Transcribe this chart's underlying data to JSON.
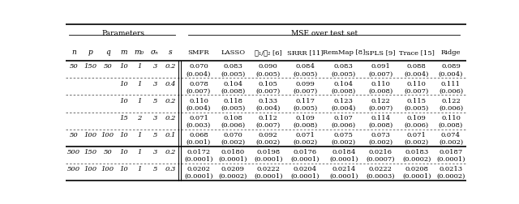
{
  "col_headers_params": [
    "n",
    "p",
    "q",
    "m",
    "m₀",
    "σₙ",
    "s"
  ],
  "col_headers_mse": [
    "SMFR",
    "LASSO",
    "ℓ₁/ℓ₂ [6]",
    "SRRR [11]",
    "RemMap [8]",
    "SPLS [9]",
    "Trace [15]",
    "Ridge"
  ],
  "params_header": "Parameters",
  "mse_header": "MSE over test set",
  "rows": [
    {
      "params": [
        "50",
        "150",
        "50",
        "10",
        "1",
        "3",
        "0.2"
      ],
      "values": [
        "0.070",
        "0.083",
        "0.090",
        "0.084",
        "0.083",
        "0.091",
        "0.088",
        "0.089"
      ],
      "std": [
        "(0.004)",
        "(0.005)",
        "(0.005)",
        "(0.005)",
        "(0.005)",
        "(0.007)",
        "(0.004)",
        "(0.004)"
      ],
      "dashed_below": true,
      "group": 0
    },
    {
      "params": [
        "",
        "",
        "",
        "10",
        "1",
        "3",
        "0.4"
      ],
      "values": [
        "0.078",
        "0.104",
        "0.105",
        "0.099",
        "0.104",
        "0.110",
        "0.110",
        "0.111"
      ],
      "std": [
        "(0.007)",
        "(0.008)",
        "(0.007)",
        "(0.007)",
        "(0.008)",
        "(0.008)",
        "(0.007)",
        "(0.006)"
      ],
      "dashed_below": true,
      "group": 0
    },
    {
      "params": [
        "",
        "",
        "",
        "10",
        "1",
        "5",
        "0.2"
      ],
      "values": [
        "0.110",
        "0.118",
        "0.133",
        "0.117",
        "0.123",
        "0.122",
        "0.115",
        "0.122"
      ],
      "std": [
        "(0.004)",
        "(0.005)",
        "(0.004)",
        "(0.005)",
        "(0.004)",
        "(0.007)",
        "(0.005)",
        "(0.006)"
      ],
      "dashed_below": true,
      "group": 0
    },
    {
      "params": [
        "",
        "",
        "",
        "15",
        "2",
        "3",
        "0.2"
      ],
      "values": [
        "0.071",
        "0.108",
        "0.112",
        "0.109",
        "0.107",
        "0.114",
        "0.109",
        "0.110"
      ],
      "std": [
        "(0.003)",
        "(0.006)",
        "(0.007)",
        "(0.008)",
        "(0.006)",
        "(0.008)",
        "(0.006)",
        "(0.008)"
      ],
      "dashed_below": true,
      "group": 0
    },
    {
      "params": [
        "50",
        "100",
        "100",
        "10",
        "1",
        "5",
        "0.1"
      ],
      "values": [
        "0.068",
        "0.070",
        "0.092",
        "0.071",
        "0.075",
        "0.073",
        "0.071",
        "0.074"
      ],
      "std": [
        "(0.001)",
        "(0.002)",
        "(0.002)",
        "(0.002)",
        "(0.002)",
        "(0.002)",
        "(0.002)",
        "(0.002)"
      ],
      "dashed_below": false,
      "group": 0
    },
    {
      "params": [
        "500",
        "150",
        "50",
        "10",
        "1",
        "3",
        "0.2"
      ],
      "values": [
        "0.0172",
        "0.0180",
        "0.0198",
        "0.0176",
        "0.0184",
        "0.0216",
        "0.0183",
        "0.0187"
      ],
      "std": [
        "(0.0001)",
        "(0.0001)",
        "(0.0001)",
        "(0.0001)",
        "(0.0001)",
        "(0.0007)",
        "(0.0002)",
        "(0.0001)"
      ],
      "dashed_below": true,
      "group": 1
    },
    {
      "params": [
        "500",
        "100",
        "100",
        "10",
        "1",
        "5",
        "0.3"
      ],
      "values": [
        "0.0202",
        "0.0209",
        "0.0222",
        "0.0204",
        "0.0214",
        "0.0222",
        "0.0208",
        "0.0213"
      ],
      "std": [
        "(0.0001)",
        "(0.0002)",
        "(0.0001)",
        "(0.0001)",
        "(0.0001)",
        "(0.0003)",
        "(0.0001)",
        "(0.0002)"
      ],
      "dashed_below": false,
      "group": 1
    }
  ],
  "figsize": [
    6.4,
    2.53
  ],
  "dpi": 100,
  "font_size": 6.0,
  "header_font_size": 6.5,
  "bg_color": "#ffffff"
}
